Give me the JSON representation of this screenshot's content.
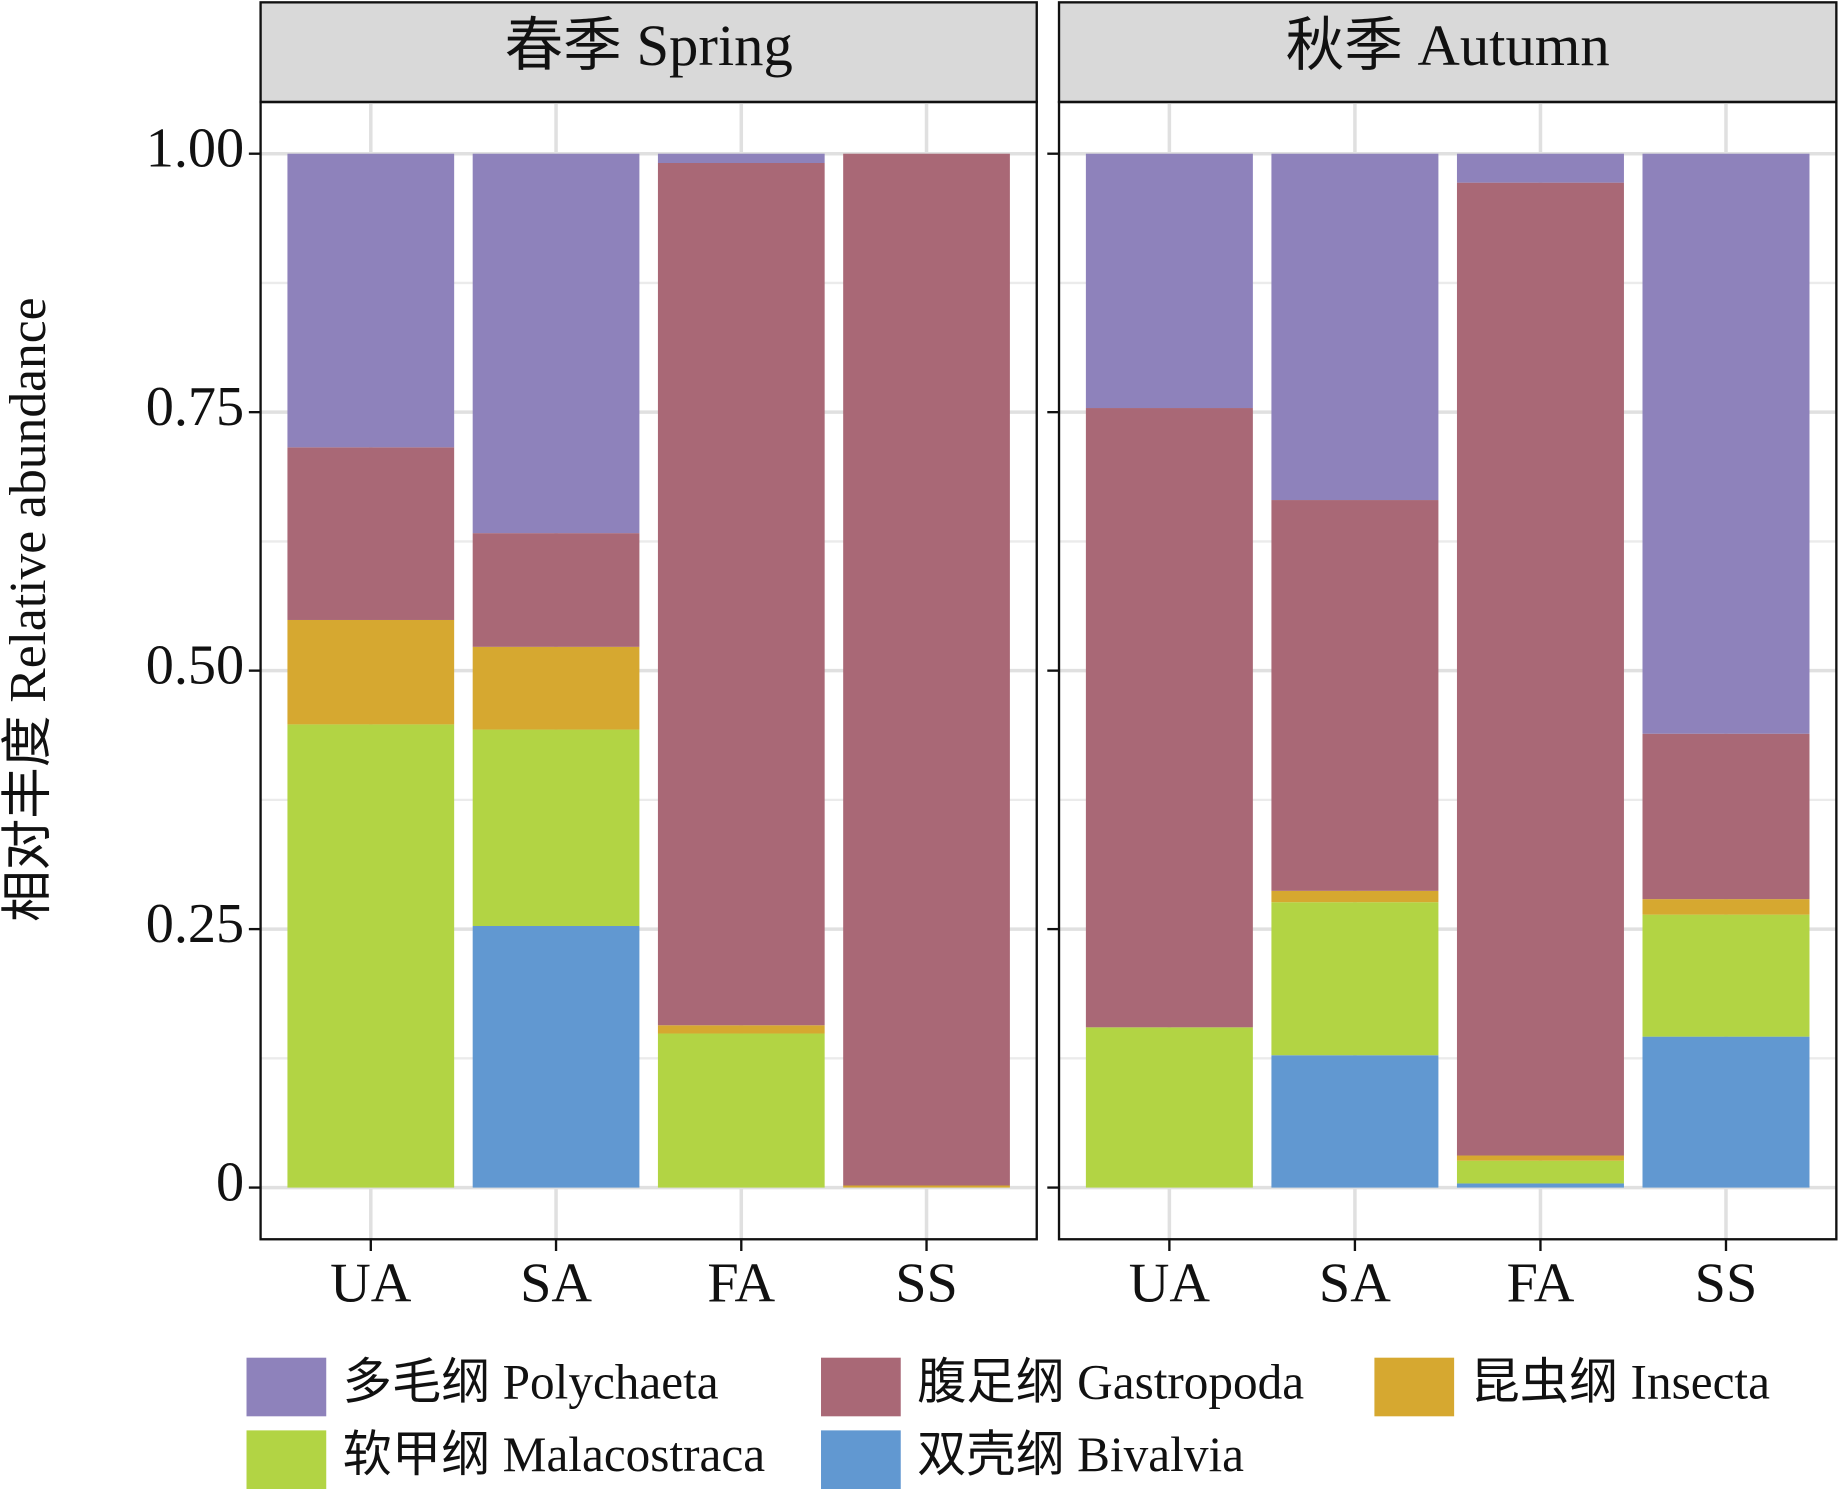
{
  "chart_data": [
    {
      "type": "bar",
      "stacked": true,
      "title": "春季 Spring",
      "ylabel": "相对丰度 Relative abundance",
      "categories": [
        "UA",
        "SA",
        "FA",
        "SS"
      ],
      "series": [
        {
          "name": "多毛纲 Polychaeta",
          "color": "#8e82bb",
          "values": [
            0.284,
            0.367,
            0.009,
            0
          ]
        },
        {
          "name": "腹足纲 Gastropoda",
          "color": "#a96876",
          "values": [
            0.167,
            0.11,
            0.834,
            0.998
          ]
        },
        {
          "name": "昆虫纲 Insecta",
          "color": "#d6a830",
          "values": [
            0.101,
            0.08,
            0.008,
            0.002
          ]
        },
        {
          "name": "软甲纲 Malacostraca",
          "color": "#b2d444",
          "values": [
            0.448,
            0.19,
            0.149,
            0
          ]
        },
        {
          "name": "双壳纲 Bivalvia",
          "color": "#6198d1",
          "values": [
            0,
            0.253,
            0,
            0
          ]
        }
      ],
      "ylim": [
        -0.05,
        1.05
      ],
      "yticks": [
        0,
        0.25,
        {
          "value": 0.5,
          "label": "0.50"
        },
        0.75,
        {
          "value": 1,
          "label": "1.00"
        }
      ],
      "grid": true
    },
    {
      "type": "bar",
      "stacked": true,
      "title": "秋季 Autumn",
      "categories": [
        "UA",
        "SA",
        "FA",
        "SS"
      ],
      "series": [
        {
          "color": "#8e82bb",
          "values": [
            0.246,
            0.335,
            0.028,
            0.561
          ]
        },
        {
          "color": "#a96876",
          "values": [
            0.599,
            0.378,
            0.941,
            0.16
          ]
        },
        {
          "color": "#d6a830",
          "values": [
            0,
            0.011,
            0.005,
            0.015
          ]
        },
        {
          "color": "#b2d444",
          "values": [
            0.155,
            0.148,
            0.022,
            0.118
          ]
        },
        {
          "color": "#6198d1",
          "values": [
            0,
            0.128,
            0.004,
            0.146
          ]
        }
      ],
      "ylim": [
        -0.05,
        1.05
      ],
      "yticks": [
        0,
        0.25,
        0.5,
        0.75,
        1
      ],
      "grid": true
    }
  ]
}
